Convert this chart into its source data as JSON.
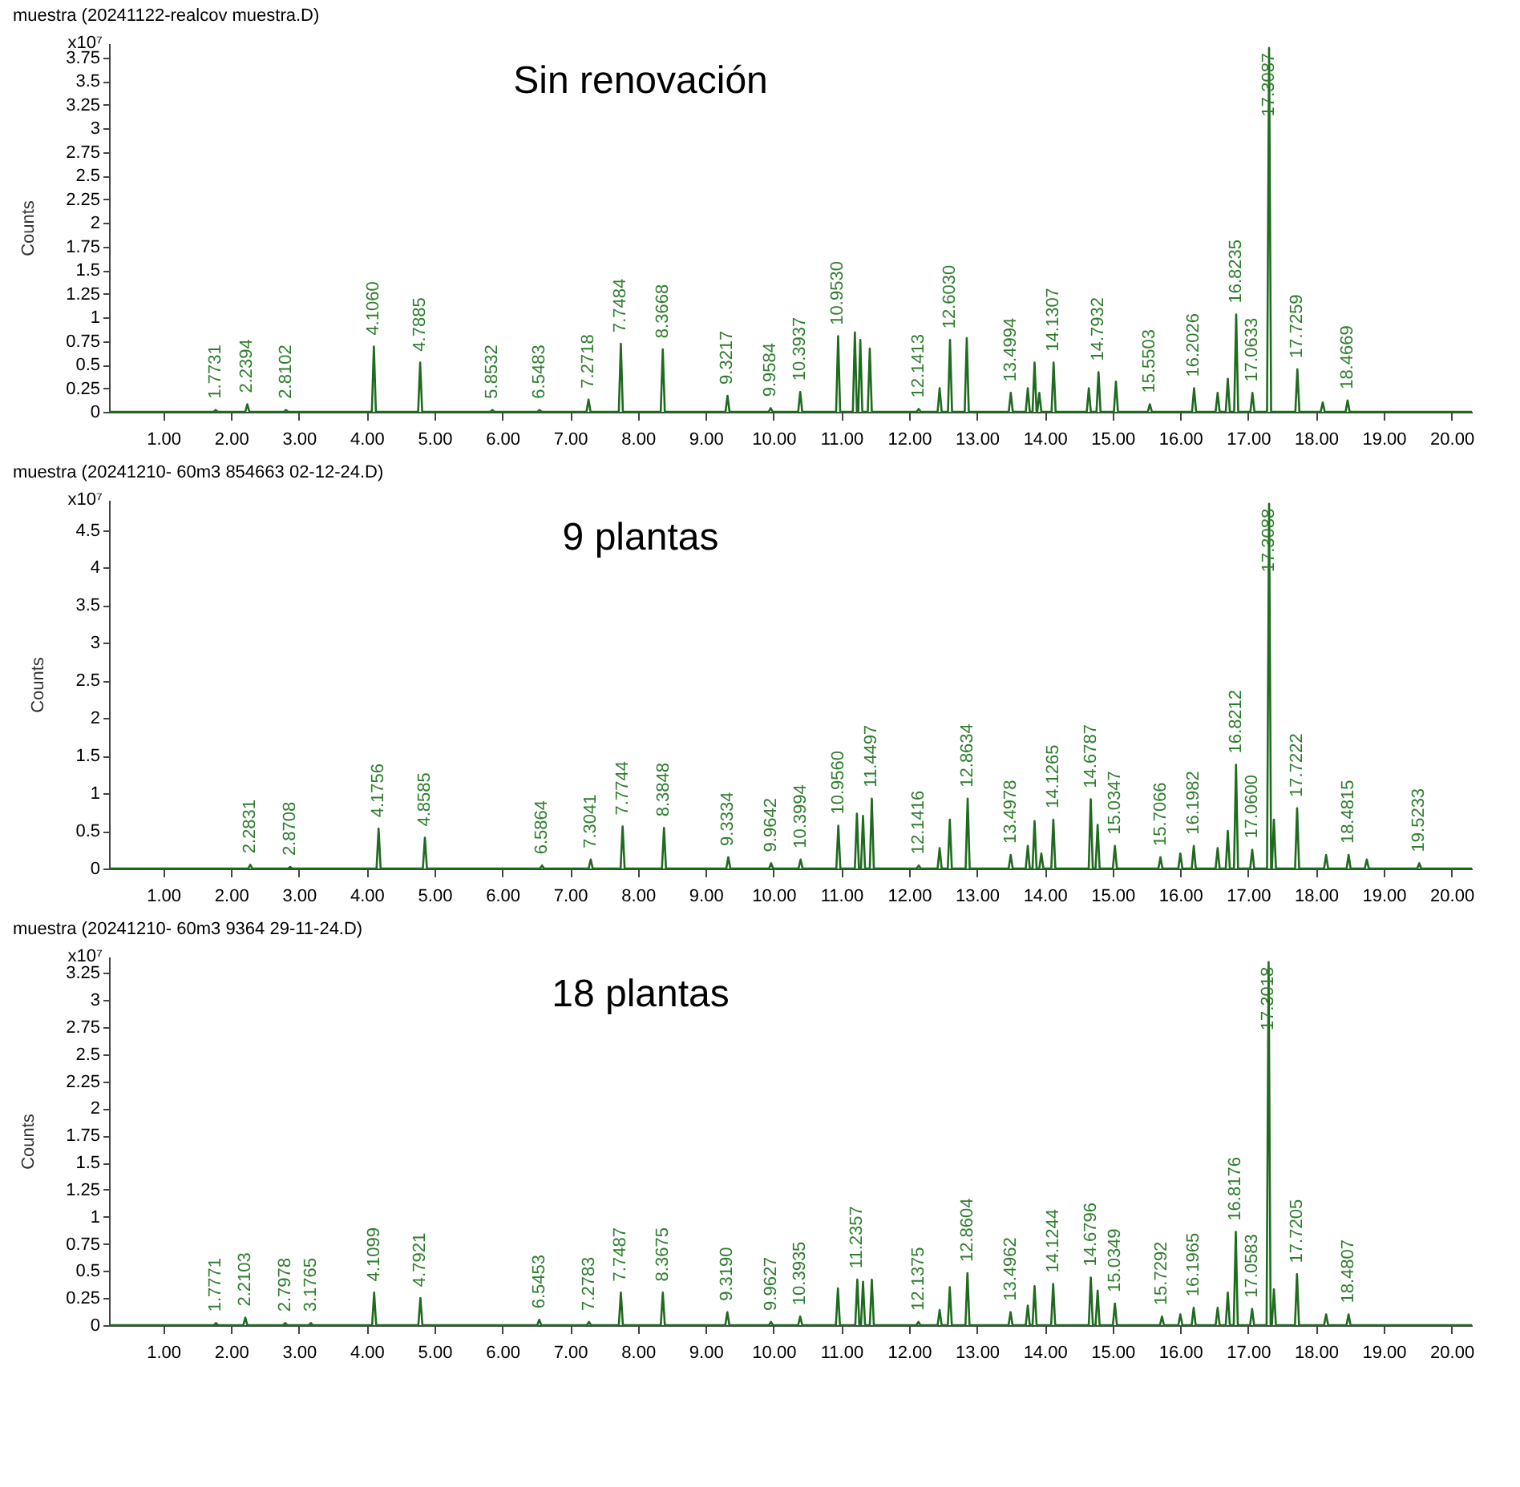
{
  "chart_data": [
    {
      "type": "line",
      "title": "muestra (20241122-realcov muestra.D)",
      "ylabel": "Counts",
      "annotations": [
        "x10⁷",
        "Sin renovación",
        {
          "text": "1.7731",
          "x": 1.7731,
          "y": 0.02
        },
        {
          "text": "2.2394",
          "x": 2.2394,
          "y": 0.08
        },
        {
          "text": "2.8102",
          "x": 2.8102,
          "y": 0.02
        },
        {
          "text": "4.1060",
          "x": 4.106,
          "y": 0.69
        },
        {
          "text": "4.7885",
          "x": 4.7885,
          "y": 0.52
        },
        {
          "text": "5.8532",
          "x": 5.8532,
          "y": 0.02
        },
        {
          "text": "6.5483",
          "x": 6.5483,
          "y": 0.02
        },
        {
          "text": "7.2718",
          "x": 7.2718,
          "y": 0.13
        },
        {
          "text": "7.7484",
          "x": 7.7484,
          "y": 0.72
        },
        {
          "text": "8.3668",
          "x": 8.3668,
          "y": 0.66
        },
        {
          "text": "9.3217",
          "x": 9.3217,
          "y": 0.17
        },
        {
          "text": "9.9584",
          "x": 9.9584,
          "y": 0.04
        },
        {
          "text": "10.3937",
          "x": 10.3937,
          "y": 0.21
        },
        {
          "text": "10.9530",
          "x": 10.953,
          "y": 0.8
        },
        {
          "text": "12.1413",
          "x": 12.1413,
          "y": 0.03
        },
        {
          "text": "12.6030",
          "x": 12.603,
          "y": 0.76
        },
        {
          "text": "13.4994",
          "x": 13.4994,
          "y": 0.2
        },
        {
          "text": "14.1307",
          "x": 14.1307,
          "y": 0.52
        },
        {
          "text": "14.7932",
          "x": 14.7932,
          "y": 0.42
        },
        {
          "text": "15.5503",
          "x": 15.5503,
          "y": 0.08
        },
        {
          "text": "16.2026",
          "x": 16.2026,
          "y": 0.25
        },
        {
          "text": "16.8235",
          "x": 16.8235,
          "y": 1.03
        },
        {
          "text": "17.0633",
          "x": 17.0633,
          "y": 0.2
        },
        {
          "text": "17.3087",
          "x": 17.3087,
          "y": 3.85
        },
        {
          "text": "17.7259",
          "x": 17.7259,
          "y": 0.45
        },
        {
          "text": "18.4669",
          "x": 18.4669,
          "y": 0.12
        }
      ],
      "x": [
        0.2,
        1.7431,
        1.7731,
        1.8031,
        2.2094,
        2.2394,
        2.2694,
        2.7802,
        2.8102,
        2.8402,
        4.076,
        4.106,
        4.136,
        4.7585,
        4.7885,
        4.8185,
        5.8232,
        5.8532,
        5.8832,
        6.5183,
        6.5483,
        6.5783,
        7.2418,
        7.2718,
        7.3018,
        7.7184,
        7.7484,
        7.7784,
        8.3368,
        8.3668,
        8.3968,
        9.2917,
        9.3217,
        9.3517,
        9.9284,
        9.9584,
        9.9884,
        10.3637,
        10.3937,
        10.4237,
        10.923,
        10.953,
        10.983,
        11.17,
        11.2,
        11.23,
        11.25,
        11.28,
        11.31,
        11.39,
        11.42,
        11.45,
        12.1113,
        12.1413,
        12.1713,
        12.42,
        12.45,
        12.48,
        12.573,
        12.603,
        12.633,
        12.82,
        12.85,
        12.88,
        13.4694,
        13.4994,
        13.5294,
        13.72,
        13.75,
        13.78,
        13.82,
        13.85,
        13.88,
        13.89,
        13.92,
        13.95,
        14.1007,
        14.1307,
        14.1607,
        14.62,
        14.65,
        14.68,
        14.7632,
        14.7932,
        14.8232,
        15.02,
        15.05,
        15.08,
        15.5203,
        15.5503,
        15.5803,
        16.1726,
        16.2026,
        16.2326,
        16.52,
        16.55,
        16.58,
        16.67,
        16.7,
        16.73,
        16.7935,
        16.8235,
        16.8535,
        17.0333,
        17.0633,
        17.0933,
        17.2787,
        17.3087,
        17.3387,
        17.6959,
        17.7259,
        17.7559,
        18.07,
        18.1,
        18.13,
        18.4369,
        18.4669,
        18.4969,
        20.3
      ],
      "series": [
        {
          "color": "#1e6b1e",
          "values": [
            0,
            0,
            0.02,
            0,
            0,
            0.08,
            0,
            0,
            0.02,
            0,
            0,
            0.69,
            0,
            0,
            0.52,
            0,
            0,
            0.02,
            0,
            0,
            0.02,
            0,
            0,
            0.13,
            0,
            0,
            0.72,
            0,
            0,
            0.66,
            0,
            0,
            0.17,
            0,
            0,
            0.04,
            0,
            0,
            0.21,
            0,
            0,
            0.8,
            0,
            0,
            0.84,
            0,
            0,
            0.76,
            0,
            0,
            0.67,
            0,
            0,
            0.03,
            0,
            0,
            0.25,
            0,
            0,
            0.76,
            0,
            0,
            0.78,
            0,
            0,
            0.2,
            0,
            0,
            0.25,
            0,
            0,
            0.52,
            0,
            0,
            0.2,
            0,
            0,
            0.52,
            0,
            0,
            0.25,
            0,
            0,
            0.42,
            0,
            0,
            0.32,
            0,
            0,
            0.08,
            0,
            0,
            0.25,
            0,
            0,
            0.2,
            0,
            0,
            0.35,
            0,
            0,
            1.03,
            0,
            0,
            0.2,
            0,
            0,
            3.85,
            0,
            0,
            0.45,
            0,
            0,
            0.1,
            0,
            0,
            0.12,
            0,
            0
          ]
        }
      ],
      "xlim": [
        0.2,
        20.3
      ],
      "ylim": [
        0,
        3.9
      ],
      "xticks": [
        {
          "value": 1,
          "label": "1.00"
        },
        {
          "value": 2,
          "label": "2.00"
        },
        {
          "value": 3,
          "label": "3.00"
        },
        {
          "value": 4,
          "label": "4.00"
        },
        {
          "value": 5,
          "label": "5.00"
        },
        {
          "value": 6,
          "label": "6.00"
        },
        {
          "value": 7,
          "label": "7.00"
        },
        {
          "value": 8,
          "label": "8.00"
        },
        {
          "value": 9,
          "label": "9.00"
        },
        {
          "value": 10,
          "label": "10.00"
        },
        {
          "value": 11,
          "label": "11.00"
        },
        {
          "value": 12,
          "label": "12.00"
        },
        {
          "value": 13,
          "label": "13.00"
        },
        {
          "value": 14,
          "label": "14.00"
        },
        {
          "value": 15,
          "label": "15.00"
        },
        {
          "value": 16,
          "label": "16.00"
        },
        {
          "value": 17,
          "label": "17.00"
        },
        {
          "value": 18,
          "label": "18.00"
        },
        {
          "value": 19,
          "label": "19.00"
        },
        {
          "value": 20,
          "label": "20.00"
        }
      ],
      "yticks": [
        0,
        0.25,
        0.5,
        0.75,
        1,
        1.25,
        1.5,
        1.75,
        2,
        2.25,
        2.5,
        2.75,
        3,
        3.25,
        3.5,
        3.75
      ]
    },
    {
      "type": "line",
      "title": "muestra (20241210- 60m3 854663 02-12-24.D)",
      "ylabel": "Counts",
      "annotations": [
        "x10⁷",
        "9 plantas",
        {
          "text": "2.2831",
          "x": 2.2831,
          "y": 0.05
        },
        {
          "text": "2.8708",
          "x": 2.8708,
          "y": 0.02
        },
        {
          "text": "4.1756",
          "x": 4.1756,
          "y": 0.53
        },
        {
          "text": "4.8585",
          "x": 4.8585,
          "y": 0.41
        },
        {
          "text": "6.5864",
          "x": 6.5864,
          "y": 0.04
        },
        {
          "text": "7.3041",
          "x": 7.3041,
          "y": 0.12
        },
        {
          "text": "7.7744",
          "x": 7.7744,
          "y": 0.56
        },
        {
          "text": "8.3848",
          "x": 8.3848,
          "y": 0.54
        },
        {
          "text": "9.3334",
          "x": 9.3334,
          "y": 0.15
        },
        {
          "text": "9.9642",
          "x": 9.9642,
          "y": 0.07
        },
        {
          "text": "10.3994",
          "x": 10.3994,
          "y": 0.12
        },
        {
          "text": "10.9560",
          "x": 10.956,
          "y": 0.57
        },
        {
          "text": "11.4497",
          "x": 11.4497,
          "y": 0.93
        },
        {
          "text": "12.1416",
          "x": 12.1416,
          "y": 0.04
        },
        {
          "text": "12.8634",
          "x": 12.8634,
          "y": 0.93
        },
        {
          "text": "13.4978",
          "x": 13.4978,
          "y": 0.18
        },
        {
          "text": "14.1265",
          "x": 14.1265,
          "y": 0.65
        },
        {
          "text": "14.6787",
          "x": 14.6787,
          "y": 0.92
        },
        {
          "text": "15.0347",
          "x": 15.0347,
          "y": 0.3
        },
        {
          "text": "15.7066",
          "x": 15.7066,
          "y": 0.15
        },
        {
          "text": "16.1982",
          "x": 16.1982,
          "y": 0.3
        },
        {
          "text": "16.8212",
          "x": 16.8212,
          "y": 1.38
        },
        {
          "text": "17.0600",
          "x": 17.06,
          "y": 0.25
        },
        {
          "text": "17.3088",
          "x": 17.3088,
          "y": 4.85
        },
        {
          "text": "17.7222",
          "x": 17.7222,
          "y": 0.8
        },
        {
          "text": "18.4815",
          "x": 18.4815,
          "y": 0.18
        },
        {
          "text": "19.5233",
          "x": 19.5233,
          "y": 0.07
        }
      ],
      "x": [
        0.2,
        2.2531,
        2.2831,
        2.3131,
        2.8408,
        2.8708,
        2.9008,
        4.1456,
        4.1756,
        4.2056,
        4.8285,
        4.8585,
        4.8885,
        6.5564,
        6.5864,
        6.6164,
        7.2741,
        7.3041,
        7.3341,
        7.7444,
        7.7744,
        7.8044,
        8.3548,
        8.3848,
        8.4148,
        9.3034,
        9.3334,
        9.3634,
        9.9342,
        9.9642,
        9.9942,
        10.3694,
        10.3994,
        10.4294,
        10.926,
        10.956,
        10.986,
        11.2,
        11.23,
        11.26,
        11.29,
        11.32,
        11.35,
        11.4197,
        11.4497,
        11.4797,
        12.1116,
        12.1416,
        12.1716,
        12.42,
        12.45,
        12.48,
        12.57,
        12.6,
        12.63,
        12.8334,
        12.8634,
        12.8934,
        13.4678,
        13.4978,
        13.5278,
        13.72,
        13.75,
        13.78,
        13.82,
        13.85,
        13.88,
        13.92,
        13.95,
        13.98,
        14.0965,
        14.1265,
        14.1565,
        14.6487,
        14.6787,
        14.7087,
        14.75,
        14.78,
        14.81,
        15.0047,
        15.0347,
        15.0647,
        15.6766,
        15.7066,
        15.7366,
        15.97,
        16,
        16.03,
        16.1682,
        16.1982,
        16.2282,
        16.52,
        16.55,
        16.58,
        16.67,
        16.7,
        16.73,
        16.7912,
        16.8212,
        16.8512,
        17.03,
        17.06,
        17.09,
        17.2788,
        17.3088,
        17.3388,
        17.35,
        17.38,
        17.41,
        17.6922,
        17.7222,
        17.7522,
        18.12,
        18.15,
        18.18,
        18.4515,
        18.4815,
        18.5115,
        18.72,
        18.75,
        18.78,
        19.4933,
        19.5233,
        19.5533,
        20.3
      ],
      "series": [
        {
          "color": "#1e6b1e",
          "values": [
            0,
            0,
            0.05,
            0,
            0,
            0.02,
            0,
            0,
            0.53,
            0,
            0,
            0.41,
            0,
            0,
            0.04,
            0,
            0,
            0.12,
            0,
            0,
            0.56,
            0,
            0,
            0.54,
            0,
            0,
            0.15,
            0,
            0,
            0.07,
            0,
            0,
            0.12,
            0,
            0,
            0.57,
            0,
            0,
            0.73,
            0,
            0,
            0.7,
            0,
            0,
            0.93,
            0,
            0,
            0.04,
            0,
            0,
            0.27,
            0,
            0,
            0.65,
            0,
            0,
            0.93,
            0,
            0,
            0.18,
            0,
            0,
            0.3,
            0,
            0,
            0.63,
            0,
            0,
            0.2,
            0,
            0,
            0.65,
            0,
            0,
            0.92,
            0,
            0,
            0.58,
            0,
            0,
            0.3,
            0,
            0,
            0.15,
            0,
            0,
            0.2,
            0,
            0,
            0.3,
            0,
            0,
            0.27,
            0,
            0,
            0.5,
            0,
            0,
            1.38,
            0,
            0,
            0.25,
            0,
            0,
            4.85,
            0,
            0,
            0.65,
            0,
            0,
            0.8,
            0,
            0,
            0.18,
            0,
            0,
            0.18,
            0,
            0,
            0.12,
            0,
            0,
            0.07,
            0,
            0
          ]
        }
      ],
      "xlim": [
        0.2,
        20.3
      ],
      "ylim": [
        0,
        4.9
      ],
      "xticks": [
        {
          "value": 1,
          "label": "1.00"
        },
        {
          "value": 2,
          "label": "2.00"
        },
        {
          "value": 3,
          "label": "3.00"
        },
        {
          "value": 4,
          "label": "4.00"
        },
        {
          "value": 5,
          "label": "5.00"
        },
        {
          "value": 6,
          "label": "6.00"
        },
        {
          "value": 7,
          "label": "7.00"
        },
        {
          "value": 8,
          "label": "8.00"
        },
        {
          "value": 9,
          "label": "9.00"
        },
        {
          "value": 10,
          "label": "10.00"
        },
        {
          "value": 11,
          "label": "11.00"
        },
        {
          "value": 12,
          "label": "12.00"
        },
        {
          "value": 13,
          "label": "13.00"
        },
        {
          "value": 14,
          "label": "14.00"
        },
        {
          "value": 15,
          "label": "15.00"
        },
        {
          "value": 16,
          "label": "16.00"
        },
        {
          "value": 17,
          "label": "17.00"
        },
        {
          "value": 18,
          "label": "18.00"
        },
        {
          "value": 19,
          "label": "19.00"
        },
        {
          "value": 20,
          "label": "20.00"
        }
      ],
      "yticks": [
        0,
        0.5,
        1,
        1.5,
        2,
        2.5,
        3,
        3.5,
        4,
        4.5
      ]
    },
    {
      "type": "line",
      "title": "muestra (20241210- 60m3 9364 29-11-24.D)",
      "ylabel": "Counts",
      "annotations": [
        "x10⁷",
        "18 plantas",
        {
          "text": "1.7771",
          "x": 1.7771,
          "y": 0.02
        },
        {
          "text": "2.2103",
          "x": 2.2103,
          "y": 0.07
        },
        {
          "text": "2.7978",
          "x": 2.7978,
          "y": 0.02
        },
        {
          "text": "3.1765",
          "x": 3.1765,
          "y": 0.02
        },
        {
          "text": "4.1099",
          "x": 4.1099,
          "y": 0.3
        },
        {
          "text": "4.7921",
          "x": 4.7921,
          "y": 0.25
        },
        {
          "text": "6.5453",
          "x": 6.5453,
          "y": 0.05
        },
        {
          "text": "7.2783",
          "x": 7.2783,
          "y": 0.03
        },
        {
          "text": "7.7487",
          "x": 7.7487,
          "y": 0.3
        },
        {
          "text": "8.3675",
          "x": 8.3675,
          "y": 0.3
        },
        {
          "text": "9.3190",
          "x": 9.319,
          "y": 0.12
        },
        {
          "text": "9.9627",
          "x": 9.9627,
          "y": 0.03
        },
        {
          "text": "10.3935",
          "x": 10.3935,
          "y": 0.08
        },
        {
          "text": "11.2357",
          "x": 11.2357,
          "y": 0.42
        },
        {
          "text": "12.1375",
          "x": 12.1375,
          "y": 0.03
        },
        {
          "text": "12.8604",
          "x": 12.8604,
          "y": 0.48
        },
        {
          "text": "13.4962",
          "x": 13.4962,
          "y": 0.12
        },
        {
          "text": "14.1244",
          "x": 14.1244,
          "y": 0.38
        },
        {
          "text": "14.6796",
          "x": 14.6796,
          "y": 0.44
        },
        {
          "text": "15.0349",
          "x": 15.0349,
          "y": 0.2
        },
        {
          "text": "15.7292",
          "x": 15.7292,
          "y": 0.08
        },
        {
          "text": "16.1965",
          "x": 16.1965,
          "y": 0.16
        },
        {
          "text": "16.8176",
          "x": 16.8176,
          "y": 0.86
        },
        {
          "text": "17.0583",
          "x": 17.0583,
          "y": 0.15
        },
        {
          "text": "17.3018",
          "x": 17.3018,
          "y": 3.35
        },
        {
          "text": "17.7205",
          "x": 17.7205,
          "y": 0.47
        },
        {
          "text": "18.4807",
          "x": 18.4807,
          "y": 0.1
        }
      ],
      "x": [
        0.2,
        1.7471,
        1.7771,
        1.8071,
        2.1803,
        2.2103,
        2.2403,
        2.7678,
        2.7978,
        2.8278,
        3.1465,
        3.1765,
        3.2065,
        4.0799,
        4.1099,
        4.1399,
        4.7621,
        4.7921,
        4.8221,
        6.5153,
        6.5453,
        6.5753,
        7.2483,
        7.2783,
        7.3083,
        7.7187,
        7.7487,
        7.7787,
        8.3375,
        8.3675,
        8.3975,
        9.289,
        9.319,
        9.349,
        9.9327,
        9.9627,
        9.9927,
        10.3635,
        10.3935,
        10.4235,
        10.92,
        10.95,
        10.98,
        11.2057,
        11.2357,
        11.2657,
        11.29,
        11.32,
        11.35,
        11.42,
        11.45,
        11.48,
        12.1075,
        12.1375,
        12.1675,
        12.42,
        12.45,
        12.48,
        12.57,
        12.6,
        12.63,
        12.8304,
        12.8604,
        12.8904,
        13.4662,
        13.4962,
        13.5262,
        13.72,
        13.75,
        13.78,
        13.82,
        13.85,
        13.88,
        14.0944,
        14.1244,
        14.1544,
        14.6496,
        14.6796,
        14.7096,
        14.75,
        14.78,
        14.81,
        15.0049,
        15.0349,
        15.0649,
        15.6992,
        15.7292,
        15.7592,
        15.97,
        16,
        16.03,
        16.1665,
        16.1965,
        16.2265,
        16.52,
        16.55,
        16.58,
        16.67,
        16.7,
        16.73,
        16.7876,
        16.8176,
        16.8476,
        17.0283,
        17.0583,
        17.0883,
        17.2718,
        17.3018,
        17.3318,
        17.35,
        17.38,
        17.41,
        17.6905,
        17.7205,
        17.7505,
        18.12,
        18.15,
        18.18,
        18.4507,
        18.4807,
        18.5107,
        20.3
      ],
      "series": [
        {
          "color": "#1e6b1e",
          "values": [
            0,
            0,
            0.02,
            0,
            0,
            0.07,
            0,
            0,
            0.02,
            0,
            0,
            0.02,
            0,
            0,
            0.3,
            0,
            0,
            0.25,
            0,
            0,
            0.05,
            0,
            0,
            0.03,
            0,
            0,
            0.3,
            0,
            0,
            0.3,
            0,
            0,
            0.12,
            0,
            0,
            0.03,
            0,
            0,
            0.08,
            0,
            0,
            0.34,
            0,
            0,
            0.42,
            0,
            0,
            0.4,
            0,
            0,
            0.42,
            0,
            0,
            0.03,
            0,
            0,
            0.14,
            0,
            0,
            0.35,
            0,
            0,
            0.48,
            0,
            0,
            0.12,
            0,
            0,
            0.18,
            0,
            0,
            0.36,
            0,
            0,
            0.38,
            0,
            0,
            0.44,
            0,
            0,
            0.32,
            0,
            0,
            0.2,
            0,
            0,
            0.08,
            0,
            0,
            0.1,
            0,
            0,
            0.16,
            0,
            0,
            0.16,
            0,
            0,
            0.3,
            0,
            0,
            0.86,
            0,
            0,
            0.15,
            0,
            0,
            3.35,
            0,
            0,
            0.33,
            0,
            0,
            0.47,
            0,
            0,
            0.1,
            0,
            0,
            0.1,
            0,
            0
          ]
        }
      ],
      "xlim": [
        0.2,
        20.3
      ],
      "ylim": [
        0,
        3.4
      ],
      "xticks": [
        {
          "value": 1,
          "label": "1.00"
        },
        {
          "value": 2,
          "label": "2.00"
        },
        {
          "value": 3,
          "label": "3.00"
        },
        {
          "value": 4,
          "label": "4.00"
        },
        {
          "value": 5,
          "label": "5.00"
        },
        {
          "value": 6,
          "label": "6.00"
        },
        {
          "value": 7,
          "label": "7.00"
        },
        {
          "value": 8,
          "label": "8.00"
        },
        {
          "value": 9,
          "label": "9.00"
        },
        {
          "value": 10,
          "label": "10.00"
        },
        {
          "value": 11,
          "label": "11.00"
        },
        {
          "value": 12,
          "label": "12.00"
        },
        {
          "value": 13,
          "label": "13.00"
        },
        {
          "value": 14,
          "label": "14.00"
        },
        {
          "value": 15,
          "label": "15.00"
        },
        {
          "value": 16,
          "label": "16.00"
        },
        {
          "value": 17,
          "label": "17.00"
        },
        {
          "value": 18,
          "label": "18.00"
        },
        {
          "value": 19,
          "label": "19.00"
        },
        {
          "value": 20,
          "label": "20.00"
        }
      ],
      "yticks": [
        0,
        0.25,
        0.5,
        0.75,
        1,
        1.25,
        1.5,
        1.75,
        2,
        2.25,
        2.5,
        2.75,
        3,
        3.25
      ]
    }
  ]
}
